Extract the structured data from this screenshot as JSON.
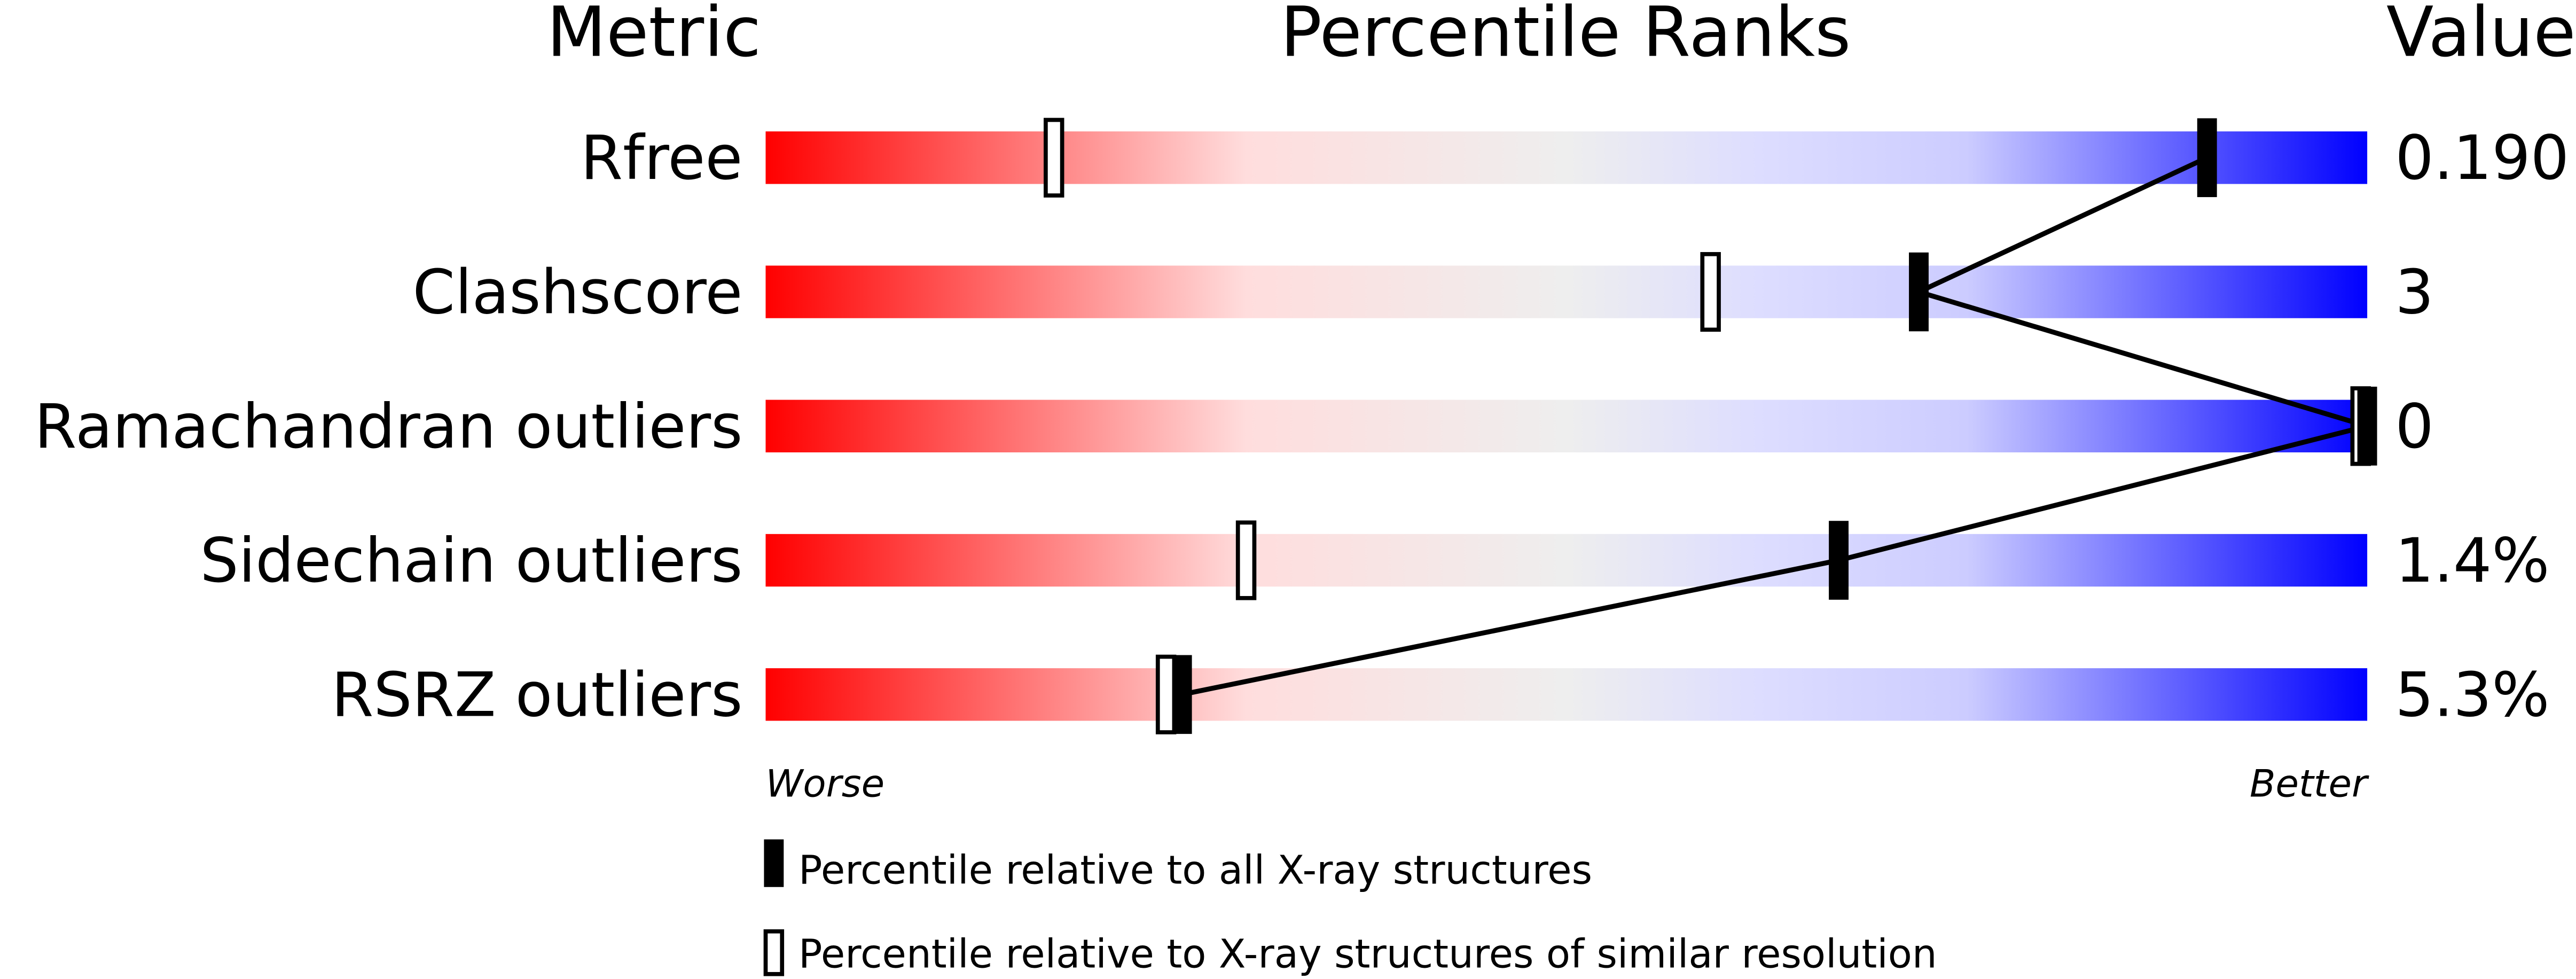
{
  "chart_data": {
    "type": "percentile-slider",
    "headers": {
      "metric": "Metric",
      "ranks": "Percentile Ranks",
      "value": "Value"
    },
    "axis": {
      "min": 0,
      "max": 100,
      "left_label": "Worse",
      "right_label": "Better"
    },
    "gradient_colors": [
      "#ff0000",
      "#ffdddd",
      "#eeeeee",
      "#ddddff",
      "#0000ff"
    ],
    "metrics": [
      {
        "name": "Rfree",
        "value": "0.190",
        "percentile_all": 90,
        "percentile_similar": 18
      },
      {
        "name": "Clashscore",
        "value": "3",
        "percentile_all": 72,
        "percentile_similar": 59
      },
      {
        "name": "Ramachandran outliers",
        "value": "0",
        "percentile_all": 100,
        "percentile_similar": 100
      },
      {
        "name": "Sidechain outliers",
        "value": "1.4%",
        "percentile_all": 67,
        "percentile_similar": 30
      },
      {
        "name": "RSRZ outliers",
        "value": "5.3%",
        "percentile_all": 26,
        "percentile_similar": 25
      }
    ],
    "legend": [
      {
        "marker": "filled",
        "label": "Percentile relative to all X-ray structures"
      },
      {
        "marker": "open",
        "label": "Percentile relative to X-ray structures of similar resolution"
      }
    ]
  }
}
